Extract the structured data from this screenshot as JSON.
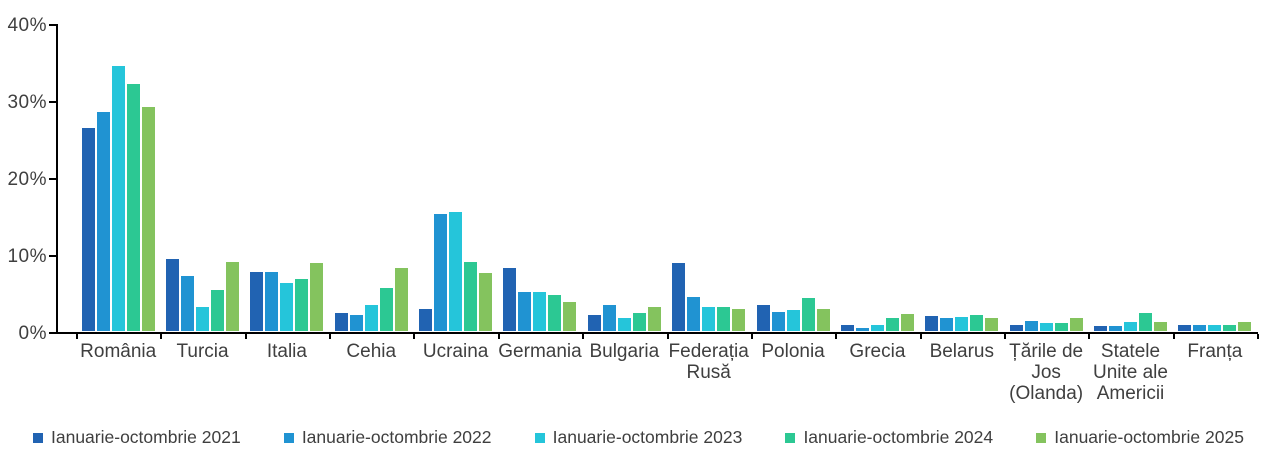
{
  "chart_data": {
    "type": "bar",
    "title": "",
    "xlabel": "",
    "ylabel": "",
    "ylim": [
      0,
      40
    ],
    "grid": false,
    "legend_position": "bottom",
    "ytick_labels": [
      "0%",
      "10%",
      "20%",
      "30%",
      "40%"
    ],
    "categories": [
      "România",
      "Turcia",
      "Italia",
      "Cehia",
      "Ucraina",
      "Germania",
      "Bulgaria",
      "Federația\nRusă",
      "Polonia",
      "Grecia",
      "Belarus",
      "Țările de\nJos\n(Olanda)",
      "Statele\nUnite ale\nAmericii",
      "Franța"
    ],
    "series": [
      {
        "name": "Ianuarie-octombrie 2021",
        "color": "#2163b2",
        "values": [
          26.5,
          9.4,
          7.7,
          2.4,
          2.9,
          8.2,
          2.2,
          8.9,
          3.4,
          0.9,
          2.0,
          0.9,
          0.7,
          0.8
        ]
      },
      {
        "name": "Ianuarie-octombrie 2022",
        "color": "#2093d2",
        "values": [
          28.5,
          7.2,
          7.7,
          2.2,
          15.3,
          5.2,
          3.4,
          4.5,
          2.5,
          0.5,
          1.7,
          1.4,
          0.7,
          0.8
        ]
      },
      {
        "name": "Ianuarie-octombrie 2023",
        "color": "#25c5da",
        "values": [
          34.5,
          3.2,
          6.3,
          3.5,
          15.6,
          5.2,
          1.8,
          3.2,
          2.8,
          0.8,
          1.9,
          1.1,
          1.2,
          0.9
        ]
      },
      {
        "name": "Ianuarie-octombrie 2024",
        "color": "#2cc893",
        "values": [
          32.2,
          5.4,
          6.8,
          5.6,
          9.1,
          4.7,
          2.4,
          3.2,
          4.4,
          1.7,
          2.2,
          1.1,
          2.4,
          0.8
        ]
      },
      {
        "name": "Ianuarie-octombrie 2025",
        "color": "#84c35e",
        "values": [
          29.2,
          9.1,
          8.9,
          8.3,
          7.6,
          3.9,
          3.2,
          2.9,
          2.9,
          2.3,
          1.8,
          1.8,
          1.2,
          1.2
        ]
      }
    ]
  }
}
